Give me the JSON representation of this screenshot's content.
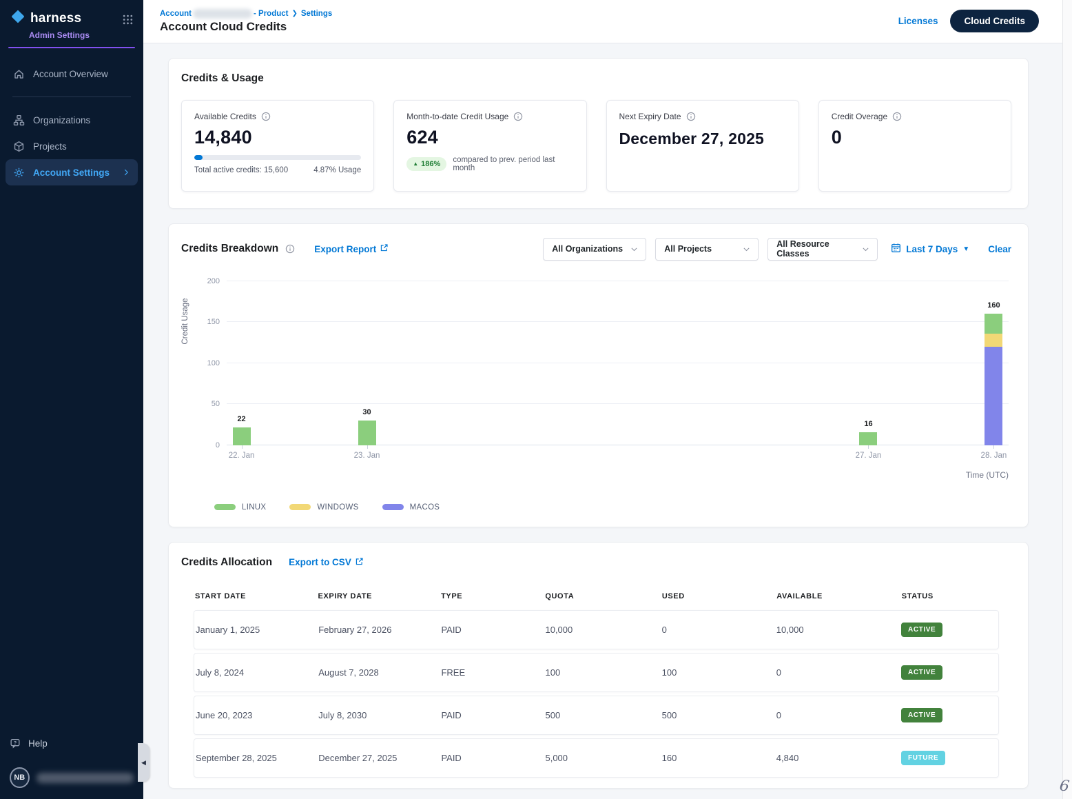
{
  "sidebar": {
    "brand": "harness",
    "subtitle": "Admin Settings",
    "items": [
      {
        "slug": "account-overview",
        "label": "Account Overview",
        "icon": "home",
        "selected": false,
        "divider_after": true
      },
      {
        "slug": "organizations",
        "label": "Organizations",
        "icon": "org",
        "selected": false
      },
      {
        "slug": "projects",
        "label": "Projects",
        "icon": "cube",
        "selected": false
      },
      {
        "slug": "account-settings",
        "label": "Account Settings",
        "icon": "gear",
        "selected": true,
        "chevron": true
      }
    ],
    "help_label": "Help",
    "avatar_initials": "NB"
  },
  "header": {
    "breadcrumb_prefix": "Account",
    "breadcrumb_suffix": "- Product",
    "breadcrumb_last": "Settings",
    "title": "Account Cloud Credits",
    "licenses_label": "Licenses",
    "cloud_credits_label": "Cloud Credits"
  },
  "credits_usage": {
    "section_title": "Credits & Usage",
    "cards": [
      {
        "label": "Available Credits",
        "value": "14,840",
        "progress_pct": 4.87,
        "footer_left": "Total active credits: 15,600",
        "footer_right": "4.87% Usage"
      },
      {
        "label": "Month-to-date Credit Usage",
        "value": "624",
        "badge": "186%",
        "badge_note": "compared to prev. period last month"
      },
      {
        "label": "Next Expiry Date",
        "value": "December 27, 2025",
        "is_date": true
      },
      {
        "label": "Credit Overage",
        "value": "0"
      }
    ]
  },
  "breakdown": {
    "title": "Credits Breakdown",
    "export_label": "Export Report",
    "filters": [
      {
        "slug": "organizations",
        "value": "All Organizations"
      },
      {
        "slug": "projects",
        "value": "All Projects"
      },
      {
        "slug": "resource-classes",
        "value": "All Resource Classes"
      }
    ],
    "date_range": "Last 7 Days",
    "clear_label": "Clear"
  },
  "chart_data": {
    "type": "bar",
    "stacked": true,
    "x_labels": [
      "22. Jan",
      "23. Jan",
      "",
      "",
      "",
      "27. Jan",
      "28. Jan"
    ],
    "series": [
      {
        "name": "LINUX",
        "color": "#8BCE7D",
        "values": [
          22,
          30,
          0,
          0,
          0,
          16,
          24
        ]
      },
      {
        "name": "WINDOWS",
        "color": "#F2D876",
        "values": [
          0,
          0,
          0,
          0,
          0,
          0,
          16
        ]
      },
      {
        "name": "MACOS",
        "color": "#8185EA",
        "values": [
          0,
          0,
          0,
          0,
          0,
          0,
          120
        ]
      }
    ],
    "stack_order_bottom_up": [
      "MACOS",
      "WINDOWS",
      "LINUX"
    ],
    "totals_labels": [
      "22",
      "30",
      "",
      "",
      "",
      "16",
      "160"
    ],
    "ylabel": "Credit Usage",
    "xlabel": "Time (UTC)",
    "ylim": [
      0,
      200
    ],
    "yticks": [
      0,
      50,
      100,
      150,
      200
    ],
    "grid": true,
    "legend_position": "bottom-left"
  },
  "allocation": {
    "title": "Credits Allocation",
    "export_label": "Export to CSV",
    "columns": [
      "START DATE",
      "EXPIRY DATE",
      "TYPE",
      "QUOTA",
      "USED",
      "AVAILABLE",
      "STATUS"
    ],
    "rows": [
      {
        "start": "January 1, 2025",
        "expiry": "February 27, 2026",
        "type": "PAID",
        "quota": "10,000",
        "used": "0",
        "available": "10,000",
        "status": "ACTIVE"
      },
      {
        "start": "July 8, 2024",
        "expiry": "August 7, 2028",
        "type": "FREE",
        "quota": "100",
        "used": "100",
        "available": "0",
        "status": "ACTIVE"
      },
      {
        "start": "June 20, 2023",
        "expiry": "July 8, 2030",
        "type": "PAID",
        "quota": "500",
        "used": "500",
        "available": "0",
        "status": "ACTIVE"
      },
      {
        "start": "September 28, 2025",
        "expiry": "December 27, 2025",
        "type": "PAID",
        "quota": "5,000",
        "used": "160",
        "available": "4,840",
        "status": "FUTURE"
      }
    ]
  },
  "misc": {
    "stray_mark": "6"
  },
  "colors": {
    "accent": "#0278D5",
    "sidebar_bg": "#0A1A2F",
    "status": {
      "ACTIVE": "#42823C",
      "FUTURE": "#62D2E2"
    }
  }
}
